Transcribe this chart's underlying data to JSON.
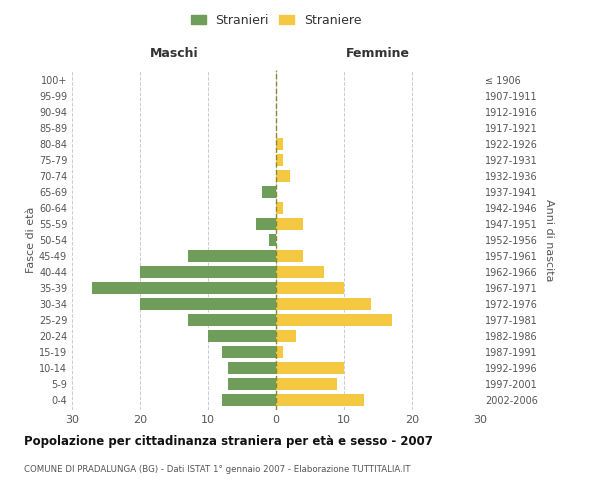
{
  "age_groups": [
    "0-4",
    "5-9",
    "10-14",
    "15-19",
    "20-24",
    "25-29",
    "30-34",
    "35-39",
    "40-44",
    "45-49",
    "50-54",
    "55-59",
    "60-64",
    "65-69",
    "70-74",
    "75-79",
    "80-84",
    "85-89",
    "90-94",
    "95-99",
    "100+"
  ],
  "birth_years": [
    "2002-2006",
    "1997-2001",
    "1992-1996",
    "1987-1991",
    "1982-1986",
    "1977-1981",
    "1972-1976",
    "1967-1971",
    "1962-1966",
    "1957-1961",
    "1952-1956",
    "1947-1951",
    "1942-1946",
    "1937-1941",
    "1932-1936",
    "1927-1931",
    "1922-1926",
    "1917-1921",
    "1912-1916",
    "1907-1911",
    "≤ 1906"
  ],
  "males": [
    8,
    7,
    7,
    8,
    10,
    13,
    20,
    27,
    20,
    13,
    1,
    3,
    0,
    2,
    0,
    0,
    0,
    0,
    0,
    0,
    0
  ],
  "females": [
    13,
    9,
    10,
    1,
    3,
    17,
    14,
    10,
    7,
    4,
    0,
    4,
    1,
    0,
    2,
    1,
    1,
    0,
    0,
    0,
    0
  ],
  "male_color": "#6f9e5a",
  "female_color": "#f5c842",
  "male_label": "Stranieri",
  "female_label": "Straniere",
  "title": "Popolazione per cittadinanza straniera per età e sesso - 2007",
  "subtitle": "COMUNE DI PRADALUNGA (BG) - Dati ISTAT 1° gennaio 2007 - Elaborazione TUTTITALIA.IT",
  "xlabel_left": "Maschi",
  "xlabel_right": "Femmine",
  "ylabel_left": "Fasce di età",
  "ylabel_right": "Anni di nascita",
  "xlim": 30,
  "bg_color": "#ffffff",
  "grid_color": "#cccccc"
}
